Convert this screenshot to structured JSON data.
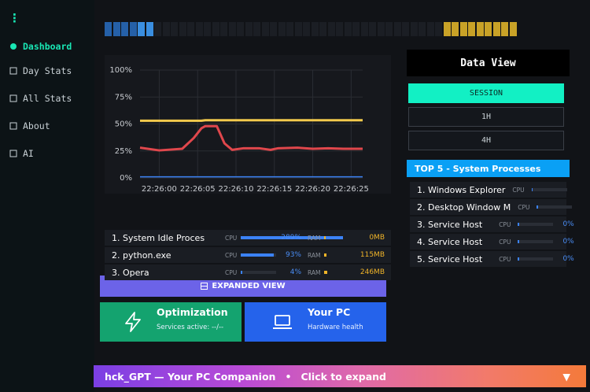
{
  "sidebar": {
    "menu_icon": "⋮",
    "items": [
      "Dashboard",
      "Day Stats",
      "All Stats",
      "About",
      "AI"
    ],
    "active": 0
  },
  "chart_data": {
    "type": "line",
    "x": [
      -2.5,
      0,
      3,
      4.5,
      5.5,
      6,
      7.5,
      8.5,
      9.5,
      11,
      13,
      14.5,
      15.5,
      18,
      20,
      22,
      24,
      26.5
    ],
    "series": [
      {
        "color": "#f2c94c",
        "values": [
          53,
          53,
          53,
          53,
          53,
          53.5,
          53.5,
          53.5,
          53.5,
          53.5,
          53.5,
          53.5,
          53.5,
          53.5,
          53.5,
          53.5,
          53.5,
          53.5
        ]
      },
      {
        "color": "#e0474c",
        "values": [
          28,
          25.5,
          27,
          37,
          46,
          48,
          48,
          32,
          26,
          27.5,
          27.5,
          26,
          27.5,
          28,
          27,
          27.5,
          27,
          27
        ]
      },
      {
        "color": "#3b82f6",
        "values": [
          1,
          1,
          1,
          1,
          1,
          1,
          1,
          1,
          1,
          1,
          1,
          1,
          1,
          1,
          1,
          1,
          1,
          1
        ]
      }
    ],
    "xlim": [
      -2.5,
      26.5
    ],
    "xticks": [
      {
        "value": 0,
        "label": "22:26:00"
      },
      {
        "value": 5,
        "label": "22:26:05"
      },
      {
        "value": 10,
        "label": "22:26:10"
      },
      {
        "value": 15,
        "label": "22:26:15"
      },
      {
        "value": 20,
        "label": "22:26:20"
      },
      {
        "value": 25,
        "label": "22:26:25"
      }
    ],
    "ylim": [
      0,
      100
    ],
    "yticks": [
      {
        "value": 0,
        "label": "0%"
      },
      {
        "value": 25,
        "label": "25%"
      },
      {
        "value": 50,
        "label": "50%"
      },
      {
        "value": 75,
        "label": "75%"
      },
      {
        "value": 100,
        "label": "100%"
      }
    ],
    "grid": true
  },
  "process_list": {
    "rows": [
      {
        "name": "1. System Idle Proces",
        "cpu_label": "CPU",
        "cpu": 289,
        "cpu_text": "289%",
        "ram_label": "RAM",
        "ram": 0,
        "ram_text": "0MB"
      },
      {
        "name": "2. python.exe",
        "cpu_label": "CPU",
        "cpu": 93,
        "cpu_text": "93%",
        "ram_label": "RAM",
        "ram": 115,
        "ram_text": "115MB"
      },
      {
        "name": "3. Opera",
        "cpu_label": "CPU",
        "cpu": 4,
        "cpu_text": "4%",
        "ram_label": "RAM",
        "ram": 246,
        "ram_text": "246MB"
      }
    ]
  },
  "data_view": {
    "title": "Data View",
    "buttons": [
      "SESSION",
      "1H",
      "4H"
    ],
    "active": 0
  },
  "top5": {
    "title": "TOP 5 - System Processes",
    "rows": [
      {
        "name": "1. Windows Explorer",
        "cpu_label": "CPU"
      },
      {
        "name": "2. Desktop Window M",
        "cpu_label": "CPU"
      },
      {
        "name": "3. Service Host",
        "cpu_label": "CPU",
        "cpu": 0,
        "cpu_text": "0%"
      },
      {
        "name": "4. Service Host",
        "cpu_label": "CPU",
        "cpu": 0,
        "cpu_text": "0%"
      },
      {
        "name": "5. Service Host",
        "cpu_label": "CPU",
        "cpu": 0,
        "cpu_text": "0%"
      }
    ]
  },
  "expanded_button": "EXPANDED VIEW",
  "cards": [
    {
      "title": "Optimization",
      "subtitle": "Services active: --/--"
    },
    {
      "title": "Your PC",
      "subtitle": "Hardware health"
    }
  ],
  "footer": {
    "title": "hck_GPT — Your PC Companion",
    "separator": "•",
    "action": "Click to expand",
    "arrow": "▼"
  }
}
